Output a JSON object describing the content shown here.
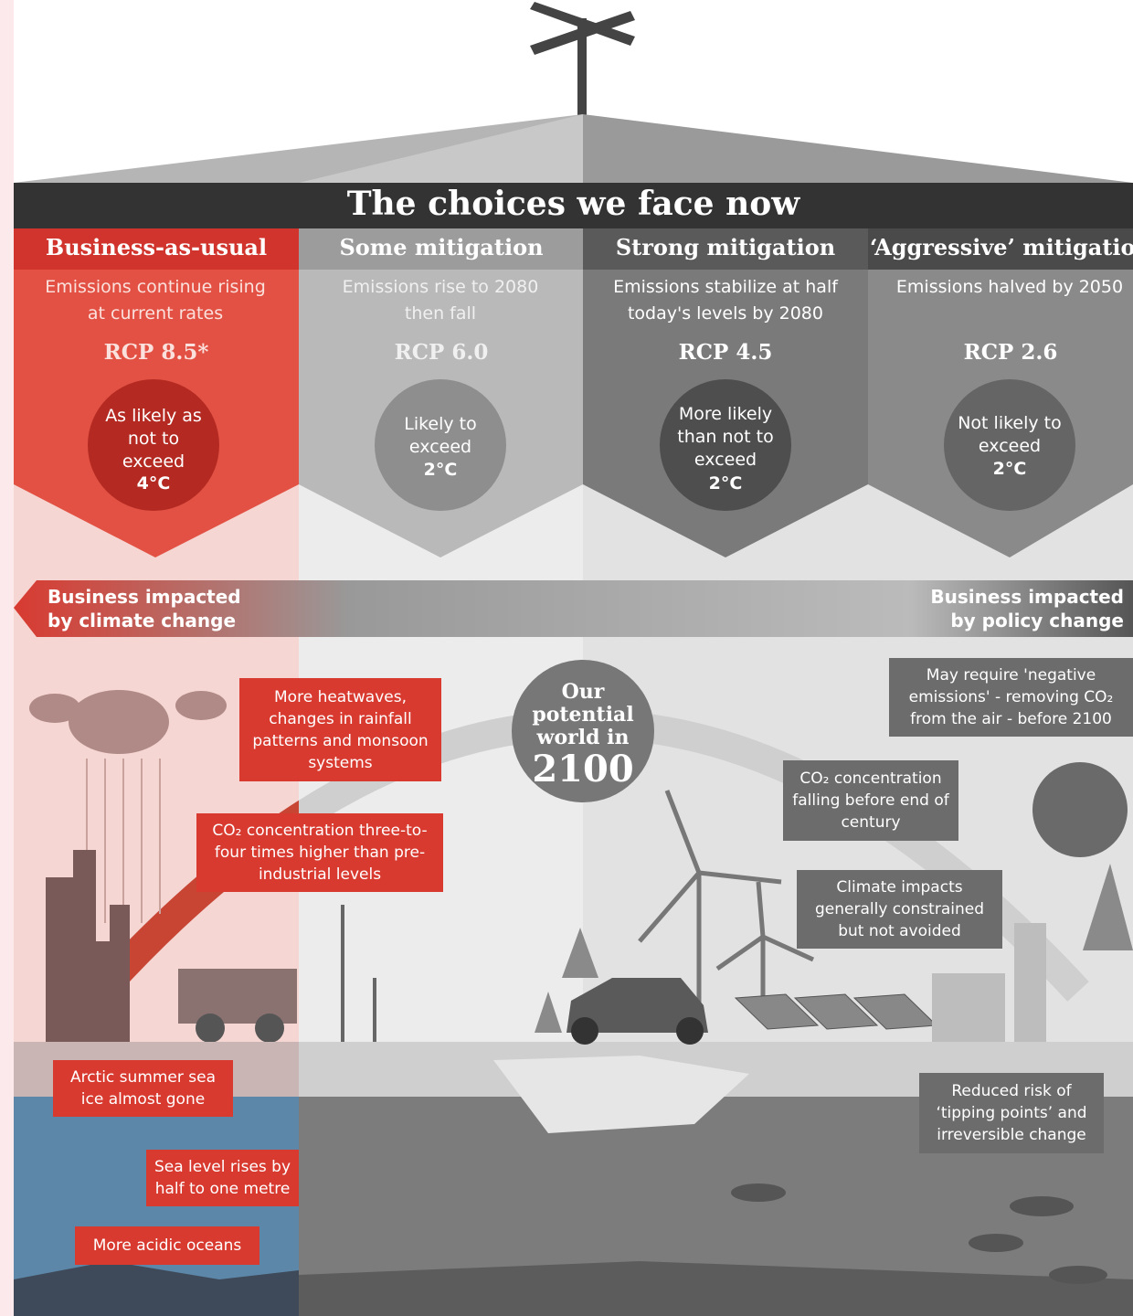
{
  "header": {
    "title": "The choices we face now"
  },
  "scenarios": [
    {
      "name": "Business-as-usual",
      "description": "Emissions continue rising at current rates",
      "rcp": "RCP 8.5*",
      "likelihood": "As likely as not to exceed",
      "threshold": "4°C"
    },
    {
      "name": "Some mitigation",
      "description": "Emissions rise to 2080 then fall",
      "rcp": "RCP 6.0",
      "likelihood": "Likely to exceed",
      "threshold": "2°C"
    },
    {
      "name": "Strong mitigation",
      "description": "Emissions stabilize at half today's levels by 2080",
      "rcp": "RCP 4.5",
      "likelihood": "More likely than not to exceed",
      "threshold": "2°C"
    },
    {
      "name": "‘Aggressive’ mitigation",
      "description": "Emissions halved by 2050",
      "rcp": "RCP 2.6",
      "likelihood": "Not likely to exceed",
      "threshold": "2°C"
    }
  ],
  "banner": {
    "left": "Business impacted by climate change",
    "right": "Business impacted by policy change"
  },
  "center": {
    "caption": "Our potential world in",
    "year": "2100"
  },
  "impacts_left": [
    "More heatwaves, changes in rainfall patterns and monsoon systems",
    "CO₂ concentration three-to-four times higher than pre-industrial levels",
    "Arctic summer sea ice almost gone",
    "Sea level rises by half to one metre",
    "More acidic oceans"
  ],
  "impacts_right": [
    "May require 'negative emissions' - removing CO₂ from the air - before 2100",
    "CO₂ concentration falling before end of century",
    "Climate impacts generally constrained but not avoided",
    "Reduced risk of ‘tipping points’ and irreversible change"
  ]
}
